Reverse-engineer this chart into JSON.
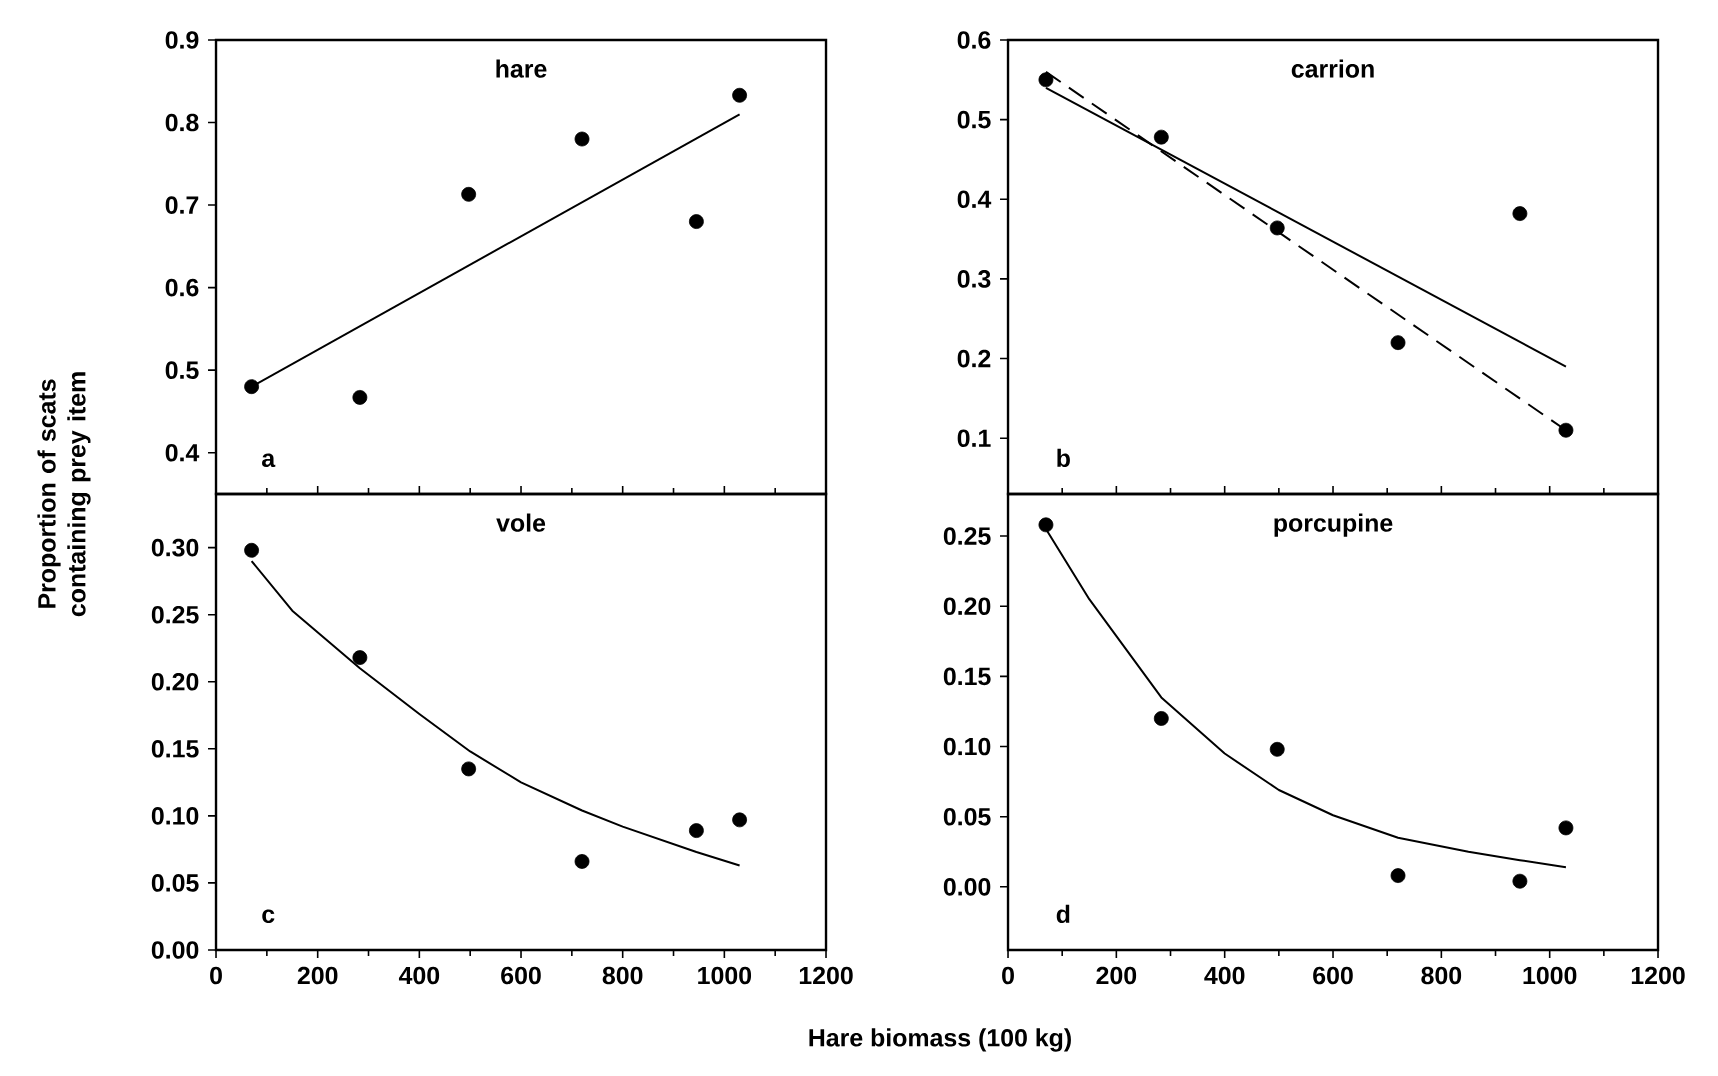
{
  "chart_data": [
    {
      "type": "scatter",
      "title": "hare",
      "ylabel": "Proportion of scats containing prey item",
      "annotations": [
        "a"
      ],
      "xlim": [
        0,
        1200
      ],
      "xticks": [
        0,
        200,
        400,
        600,
        800,
        1000,
        1200
      ],
      "ylim": [
        0.35,
        0.9
      ],
      "yticks": [
        0.4,
        0.5,
        0.6,
        0.7,
        0.8,
        0.9
      ],
      "tick_labels": "y",
      "marker": "circle",
      "series": [
        {
          "type": "scatter",
          "color": "#000000",
          "x": [
            70,
            283,
            497,
            720,
            945,
            1030
          ],
          "values": [
            0.48,
            0.467,
            0.713,
            0.78,
            0.68,
            0.833
          ]
        },
        {
          "type": "line",
          "marker": "none",
          "color": "#000000",
          "line_style": "solid",
          "x": [
            70,
            1030
          ],
          "values": [
            0.48,
            0.81
          ]
        }
      ]
    },
    {
      "type": "scatter",
      "title": "carrion",
      "annotations": [
        "b"
      ],
      "xlim": [
        0,
        1200
      ],
      "xticks": [
        0,
        200,
        400,
        600,
        800,
        1000,
        1200
      ],
      "ylim": [
        0.03,
        0.6
      ],
      "yticks": [
        0.1,
        0.2,
        0.3,
        0.4,
        0.5,
        0.6
      ],
      "tick_labels": "y",
      "marker": "circle",
      "series": [
        {
          "type": "scatter",
          "color": "#000000",
          "x": [
            70,
            283,
            497,
            720,
            945,
            1030
          ],
          "values": [
            0.55,
            0.478,
            0.364,
            0.22,
            0.382,
            0.11
          ]
        },
        {
          "type": "line",
          "marker": "none",
          "color": "#000000",
          "line_style": "solid",
          "x": [
            70,
            1030
          ],
          "values": [
            0.54,
            0.19
          ]
        },
        {
          "type": "line",
          "marker": "none",
          "color": "#000000",
          "line_style": "dashed",
          "x": [
            70,
            1030
          ],
          "values": [
            0.56,
            0.11
          ]
        }
      ]
    },
    {
      "type": "scatter",
      "title": "vole",
      "xlabel": "Hare biomass (100 kg)",
      "annotations": [
        "c"
      ],
      "xlim": [
        0,
        1200
      ],
      "xticks": [
        0,
        200,
        400,
        600,
        800,
        1000,
        1200
      ],
      "ylim": [
        0,
        0.34
      ],
      "yticks": [
        {
          "value": 0,
          "label": "0.00"
        },
        {
          "value": 0.05,
          "label": "0.05"
        },
        {
          "value": 0.1,
          "label": "0.10"
        },
        {
          "value": 0.15,
          "label": "0.15"
        },
        {
          "value": 0.2,
          "label": "0.20"
        },
        {
          "value": 0.25,
          "label": "0.25"
        },
        {
          "value": 0.3,
          "label": "0.30"
        }
      ],
      "marker": "circle",
      "series": [
        {
          "type": "scatter",
          "color": "#000000",
          "x": [
            70,
            283,
            497,
            720,
            945,
            1030
          ],
          "values": [
            0.298,
            0.218,
            0.135,
            0.066,
            0.089,
            0.097
          ]
        },
        {
          "type": "line",
          "marker": "none",
          "color": "#000000",
          "line_style": "solid",
          "x": [
            70,
            150,
            283,
            400,
            500,
            600,
            720,
            800,
            945,
            1030
          ],
          "values": [
            0.29,
            0.253,
            0.21,
            0.176,
            0.148,
            0.125,
            0.104,
            0.092,
            0.073,
            0.063
          ]
        }
      ]
    },
    {
      "type": "scatter",
      "title": "porcupine",
      "annotations": [
        "d"
      ],
      "xlim": [
        0,
        1200
      ],
      "xticks": [
        0,
        200,
        400,
        600,
        800,
        1000,
        1200
      ],
      "ylim": [
        -0.045,
        0.28
      ],
      "yticks": [
        {
          "value": 0,
          "label": "0.00"
        },
        {
          "value": 0.05,
          "label": "0.05"
        },
        {
          "value": 0.1,
          "label": "0.10"
        },
        {
          "value": 0.15,
          "label": "0.15"
        },
        {
          "value": 0.2,
          "label": "0.20"
        },
        {
          "value": 0.25,
          "label": "0.25"
        }
      ],
      "marker": "circle",
      "series": [
        {
          "type": "scatter",
          "color": "#000000",
          "x": [
            70,
            283,
            497,
            720,
            945,
            1030
          ],
          "values": [
            0.258,
            0.12,
            0.098,
            0.008,
            0.004,
            0.042
          ]
        },
        {
          "type": "line",
          "marker": "none",
          "color": "#000000",
          "line_style": "solid",
          "x": [
            70,
            150,
            283,
            400,
            500,
            600,
            720,
            850,
            945,
            1030
          ],
          "values": [
            0.255,
            0.205,
            0.135,
            0.095,
            0.069,
            0.051,
            0.035,
            0.025,
            0.019,
            0.014
          ]
        }
      ]
    }
  ]
}
